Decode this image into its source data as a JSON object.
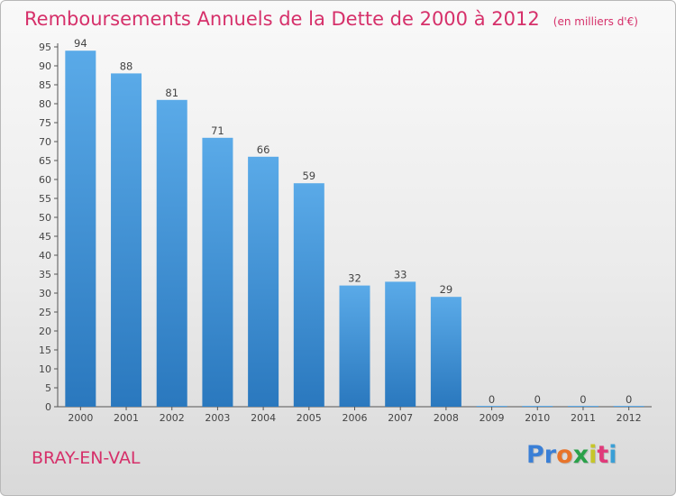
{
  "title": "Remboursements Annuels de la Dette de 2000 à 2012",
  "subtitle": "(en milliers d'€)",
  "commune": "BRAY-EN-VAL",
  "logo": {
    "text": "Proxiti",
    "colors": [
      "#3a7fd6",
      "#3a7fd6",
      "#e8742a",
      "#2aa14a",
      "#c6c62a",
      "#e03a7a",
      "#3a9fd6"
    ]
  },
  "colors": {
    "accent": "#d6306a",
    "bar_top": "#5aaae8",
    "bar_bottom": "#2a78be"
  },
  "chart_data": {
    "type": "bar",
    "categories": [
      "2000",
      "2001",
      "2002",
      "2003",
      "2004",
      "2005",
      "2006",
      "2007",
      "2008",
      "2009",
      "2010",
      "2011",
      "2012"
    ],
    "values": [
      94,
      88,
      81,
      71,
      66,
      59,
      32,
      33,
      29,
      0,
      0,
      0,
      0
    ],
    "title": "Remboursements Annuels de la Dette de 2000 à 2012",
    "subtitle": "(en milliers d'€)",
    "xlabel": "",
    "ylabel": "",
    "ylim": [
      0,
      95
    ],
    "yticks": [
      0,
      5,
      10,
      15,
      20,
      25,
      30,
      35,
      40,
      45,
      50,
      55,
      60,
      65,
      70,
      75,
      80,
      85,
      90,
      95
    ],
    "grid": false,
    "data_labels": true
  }
}
